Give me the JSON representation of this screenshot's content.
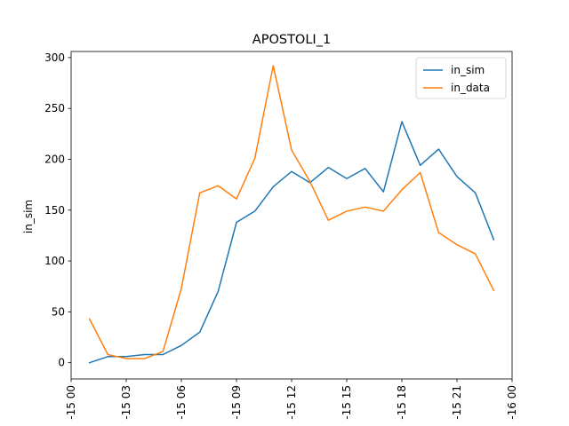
{
  "chart_data": {
    "type": "line",
    "title": "APOSTOLI_1",
    "xlabel": "",
    "ylabel": "in_sim",
    "x": [
      "01:00",
      "02:00",
      "03:00",
      "04:00",
      "05:00",
      "06:00",
      "07:00",
      "08:00",
      "09:00",
      "10:00",
      "11:00",
      "12:00",
      "13:00",
      "14:00",
      "15:00",
      "16:00",
      "17:00",
      "18:00",
      "19:00",
      "20:00",
      "21:00",
      "22:00",
      "23:00"
    ],
    "xlim": [
      "00:00",
      "24:00"
    ],
    "ylim": [
      -16,
      306
    ],
    "x_ticks": [
      {
        "at": "00:00",
        "label": "-15 00"
      },
      {
        "at": "03:00",
        "label": "-15 03"
      },
      {
        "at": "06:00",
        "label": "-15 06"
      },
      {
        "at": "09:00",
        "label": "-15 09"
      },
      {
        "at": "12:00",
        "label": "-15 12"
      },
      {
        "at": "15:00",
        "label": "-15 15"
      },
      {
        "at": "18:00",
        "label": "-15 18"
      },
      {
        "at": "21:00",
        "label": "-15 21"
      },
      {
        "at": "24:00",
        "label": "-16 00"
      }
    ],
    "y_ticks": [
      0,
      50,
      100,
      150,
      200,
      250,
      300
    ],
    "grid": false,
    "legend_position": "top-right",
    "series": [
      {
        "name": "in_sim",
        "color": "#1f77b4",
        "values": [
          0,
          6,
          6,
          8,
          8,
          17,
          30,
          70,
          138,
          149,
          173,
          188,
          177,
          192,
          181,
          191,
          168,
          237,
          194,
          210,
          183,
          167,
          121
        ]
      },
      {
        "name": "in_data",
        "color": "#ff7f0e",
        "values": [
          43,
          8,
          4,
          4,
          11,
          73,
          167,
          174,
          161,
          201,
          292,
          209,
          178,
          140,
          149,
          153,
          149,
          170,
          187,
          128,
          116,
          107,
          71
        ]
      }
    ]
  }
}
